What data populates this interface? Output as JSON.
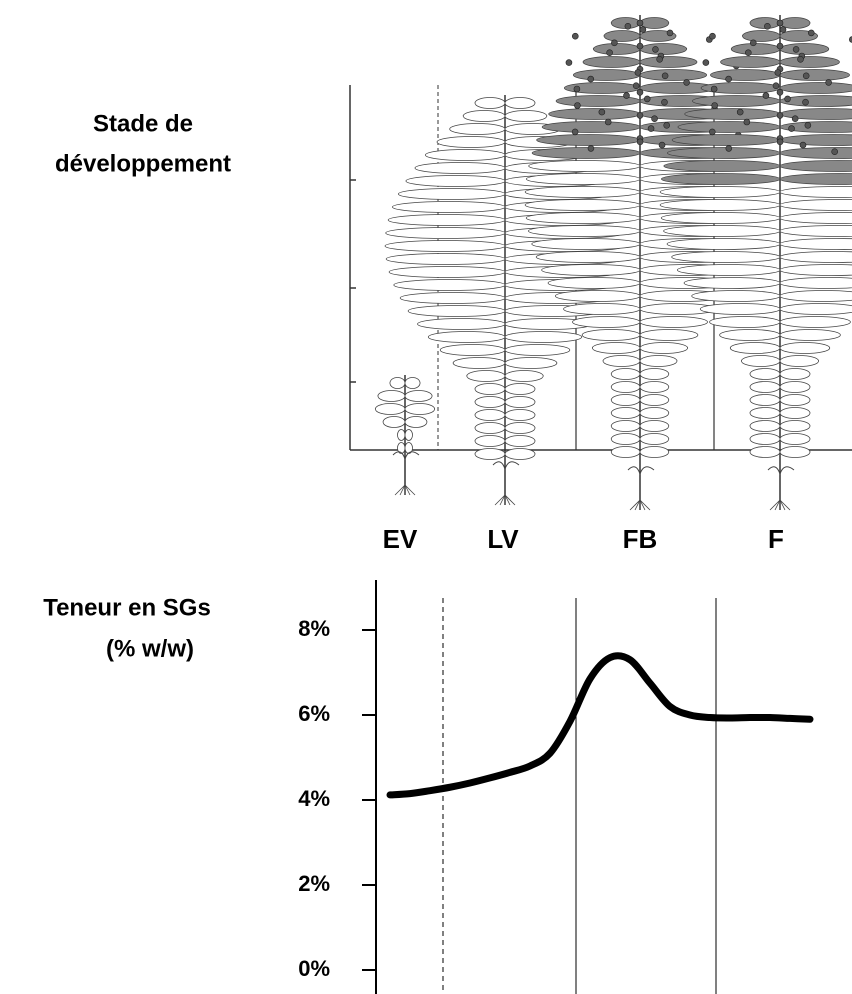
{
  "development_axis": {
    "title_lines": [
      "Stade de",
      "développement"
    ],
    "stages": [
      "EV",
      "LV",
      "FB",
      "F"
    ]
  },
  "chart_data": {
    "type": "line",
    "ylabel_lines": [
      "Teneur en SGs",
      "(% w/w)"
    ],
    "categories": [
      null,
      null,
      null,
      null,
      null,
      null,
      null,
      null,
      null,
      null,
      null,
      null,
      null,
      null,
      null,
      null,
      null,
      null,
      null,
      null,
      null,
      null
    ],
    "values": [
      4.12,
      4.15,
      4.22,
      4.3,
      4.4,
      4.52,
      4.65,
      4.8,
      5.1,
      5.85,
      6.85,
      7.35,
      7.3,
      6.75,
      6.2,
      6.0,
      5.94,
      5.93,
      5.94,
      5.94,
      5.92,
      5.9
    ],
    "color": "#000000",
    "ylim": [
      0,
      8
    ],
    "yticks": [
      {
        "value": 0,
        "label": "0%"
      },
      {
        "value": 2,
        "label": "2%"
      },
      {
        "value": 4,
        "label": "4%"
      },
      {
        "value": 6,
        "label": "6%"
      },
      {
        "value": 8,
        "label": "8%"
      }
    ],
    "grid": false
  }
}
